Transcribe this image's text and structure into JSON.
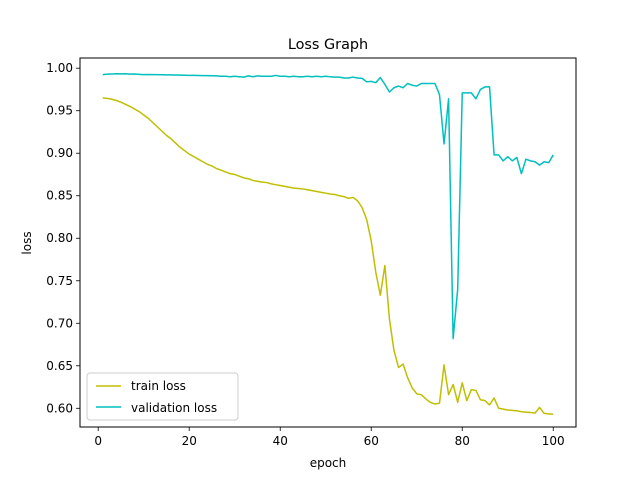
{
  "chart_data": {
    "type": "line",
    "title": "Loss Graph",
    "xlabel": "epoch",
    "ylabel": "loss",
    "xlim": [
      -4,
      105
    ],
    "ylim": [
      0.578,
      1.012
    ],
    "xticks": [
      0,
      20,
      40,
      60,
      80,
      100
    ],
    "yticks": [
      0.6,
      0.65,
      0.7,
      0.75,
      0.8,
      0.85,
      0.9,
      0.95,
      1.0
    ],
    "ytick_labels": [
      "0.60",
      "0.65",
      "0.70",
      "0.75",
      "0.80",
      "0.85",
      "0.90",
      "0.95",
      "1.00"
    ],
    "grid": false,
    "legend_position": "lower-left",
    "x": [
      1,
      2,
      3,
      4,
      5,
      6,
      7,
      8,
      9,
      10,
      11,
      12,
      13,
      14,
      15,
      16,
      17,
      18,
      19,
      20,
      21,
      22,
      23,
      24,
      25,
      26,
      27,
      28,
      29,
      30,
      31,
      32,
      33,
      34,
      35,
      36,
      37,
      38,
      39,
      40,
      41,
      42,
      43,
      44,
      45,
      46,
      47,
      48,
      49,
      50,
      51,
      52,
      53,
      54,
      55,
      56,
      57,
      58,
      59,
      60,
      61,
      62,
      63,
      64,
      65,
      66,
      67,
      68,
      69,
      70,
      71,
      72,
      73,
      74,
      75,
      76,
      77,
      78,
      79,
      80,
      81,
      82,
      83,
      84,
      85,
      86,
      87,
      88,
      89,
      90,
      91,
      92,
      93,
      94,
      95,
      96,
      97,
      98,
      99,
      100
    ],
    "series": [
      {
        "name": "train loss",
        "color": "#bfbf00",
        "values": [
          0.965,
          0.9645,
          0.9635,
          0.962,
          0.96,
          0.9575,
          0.955,
          0.952,
          0.949,
          0.945,
          0.941,
          0.936,
          0.931,
          0.926,
          0.921,
          0.917,
          0.912,
          0.907,
          0.903,
          0.899,
          0.896,
          0.893,
          0.89,
          0.887,
          0.885,
          0.882,
          0.88,
          0.878,
          0.876,
          0.875,
          0.873,
          0.871,
          0.87,
          0.868,
          0.867,
          0.866,
          0.8655,
          0.864,
          0.863,
          0.862,
          0.861,
          0.86,
          0.859,
          0.8585,
          0.858,
          0.857,
          0.856,
          0.855,
          0.854,
          0.853,
          0.852,
          0.8515,
          0.85,
          0.849,
          0.847,
          0.848,
          0.844,
          0.836,
          0.822,
          0.797,
          0.76,
          0.733,
          0.768,
          0.705,
          0.668,
          0.648,
          0.652,
          0.636,
          0.624,
          0.617,
          0.616,
          0.611,
          0.607,
          0.605,
          0.606,
          0.651,
          0.616,
          0.628,
          0.607,
          0.63,
          0.609,
          0.622,
          0.621,
          0.61,
          0.609,
          0.604,
          0.612,
          0.6,
          0.599,
          0.598,
          0.5975,
          0.597,
          0.596,
          0.5955,
          0.595,
          0.5945,
          0.601,
          0.594,
          0.5935,
          0.593
        ]
      },
      {
        "name": "validation loss",
        "color": "#00bfbf",
        "values": [
          0.9925,
          0.993,
          0.9932,
          0.9934,
          0.9933,
          0.9935,
          0.993,
          0.9932,
          0.9928,
          0.9925,
          0.9926,
          0.9925,
          0.9924,
          0.9923,
          0.9922,
          0.9921,
          0.992,
          0.9918,
          0.9917,
          0.9916,
          0.9915,
          0.9914,
          0.9913,
          0.9912,
          0.9911,
          0.991,
          0.9905,
          0.9905,
          0.99,
          0.9905,
          0.99,
          0.9895,
          0.991,
          0.99,
          0.991,
          0.9905,
          0.9905,
          0.9905,
          0.9915,
          0.9905,
          0.9905,
          0.99,
          0.9905,
          0.99,
          0.99,
          0.9905,
          0.99,
          0.9905,
          0.99,
          0.9905,
          0.99,
          0.9895,
          0.9895,
          0.9885,
          0.9885,
          0.9895,
          0.9885,
          0.988,
          0.984,
          0.9845,
          0.983,
          0.989,
          0.981,
          0.972,
          0.977,
          0.979,
          0.977,
          0.982,
          0.98,
          0.979,
          0.982,
          0.982,
          0.982,
          0.982,
          0.969,
          0.911,
          0.964,
          0.682,
          0.74,
          0.971,
          0.971,
          0.971,
          0.964,
          0.975,
          0.978,
          0.978,
          0.898,
          0.898,
          0.891,
          0.896,
          0.891,
          0.895,
          0.876,
          0.893,
          0.891,
          0.89,
          0.886,
          0.89,
          0.889,
          0.898
        ]
      }
    ]
  }
}
